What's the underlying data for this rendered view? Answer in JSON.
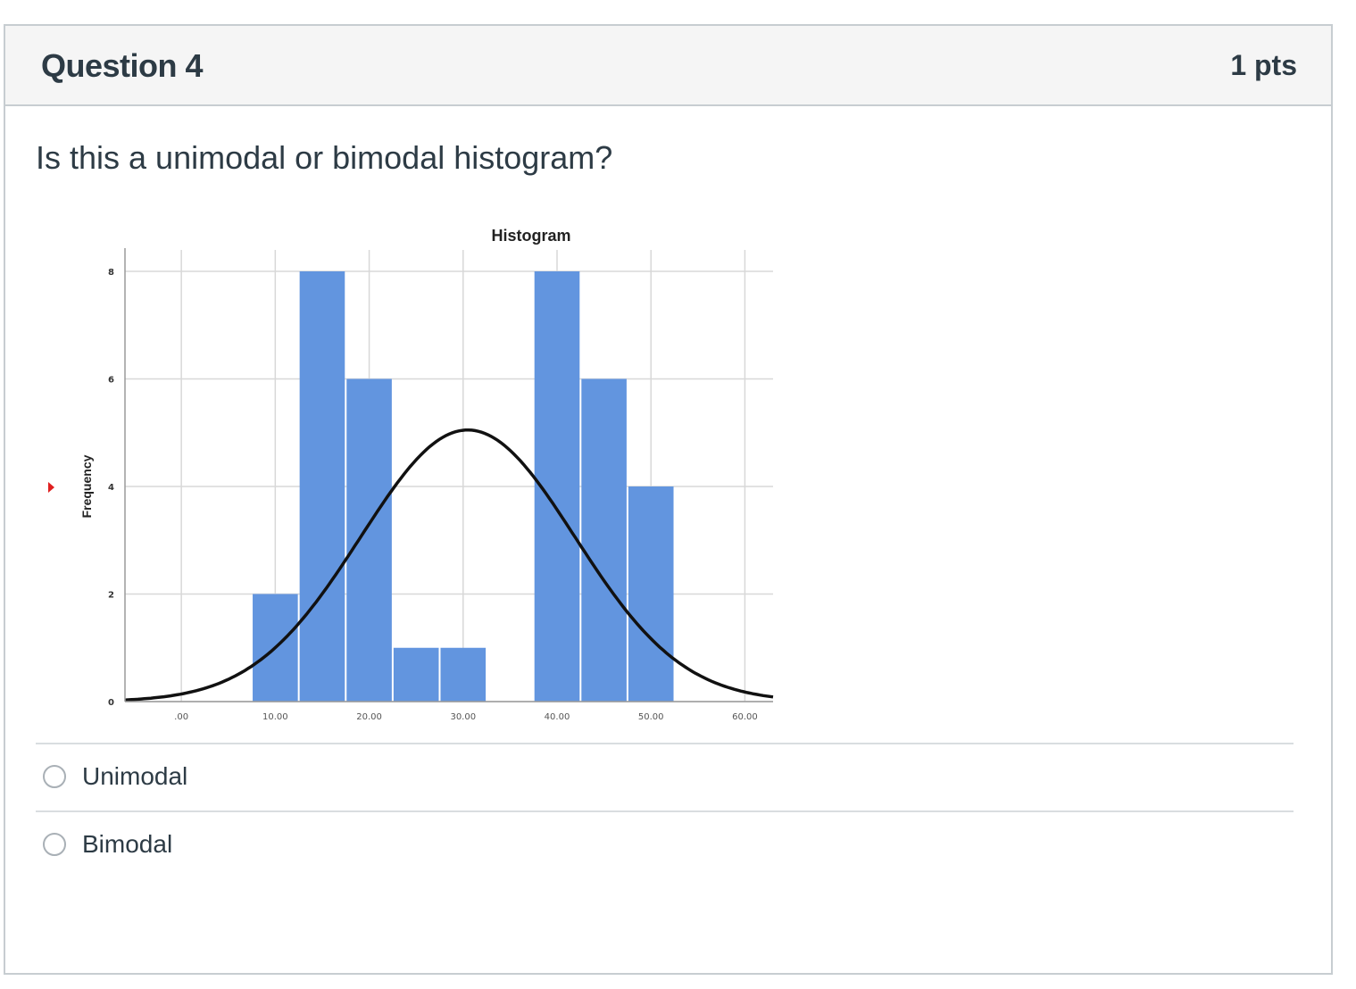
{
  "question": {
    "title": "Question 4",
    "points": "1 pts",
    "text": "Is this a unimodal or bimodal histogram?"
  },
  "answers": [
    {
      "label": "Unimodal"
    },
    {
      "label": "Bimodal"
    }
  ],
  "chart_data": {
    "type": "bar",
    "title": "Histogram",
    "xlabel": "",
    "ylabel": "Frequency",
    "xlim": [
      -6,
      63
    ],
    "ylim": [
      0,
      8
    ],
    "x_ticks": [
      ".00",
      "10.00",
      "20.00",
      "30.00",
      "40.00",
      "50.00",
      "60.00"
    ],
    "x_tick_values": [
      0,
      10,
      20,
      30,
      40,
      50,
      60
    ],
    "y_ticks": [
      "0",
      "2",
      "4",
      "6",
      "8"
    ],
    "y_tick_values": [
      0,
      2,
      4,
      6,
      8
    ],
    "bins": [
      {
        "start": 7.5,
        "end": 12.5,
        "value": 2
      },
      {
        "start": 12.5,
        "end": 17.5,
        "value": 8
      },
      {
        "start": 17.5,
        "end": 22.5,
        "value": 6
      },
      {
        "start": 22.5,
        "end": 27.5,
        "value": 1
      },
      {
        "start": 27.5,
        "end": 32.5,
        "value": 1
      },
      {
        "start": 37.5,
        "end": 42.5,
        "value": 8
      },
      {
        "start": 42.5,
        "end": 47.5,
        "value": 6
      },
      {
        "start": 47.5,
        "end": 52.5,
        "value": 4
      }
    ],
    "normal_curve": {
      "mean": 30.5,
      "sd": 11.4,
      "peak": 5.05
    },
    "bar_color": "#6295df",
    "curve_color": "#111111",
    "grid": true
  }
}
